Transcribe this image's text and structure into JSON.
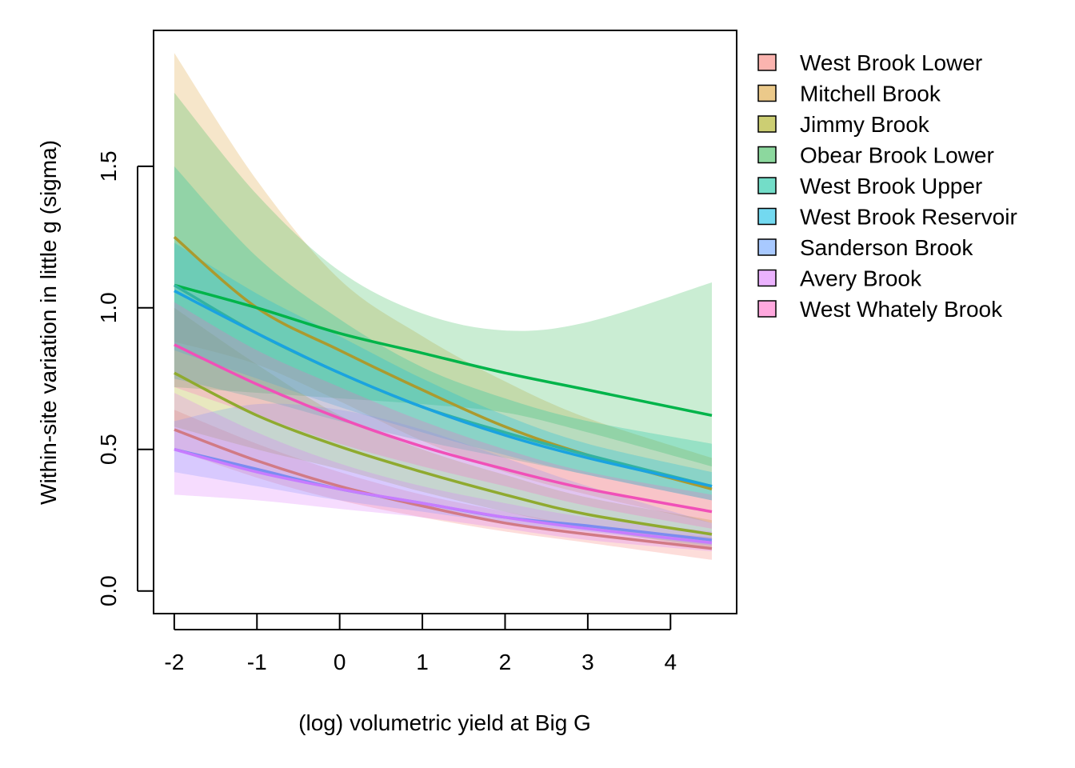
{
  "chart_data": {
    "type": "line",
    "xlabel": "(log) volumetric yield at Big G",
    "ylabel": "Within-site variation in little g (sigma)",
    "xlim": [
      -2.25,
      4.8
    ],
    "ylim": [
      -0.08,
      1.98
    ],
    "x_ticks": [
      -2,
      -1,
      0,
      1,
      2,
      3,
      4
    ],
    "x_tick_labels": [
      "-2",
      "-1",
      "0",
      "1",
      "2",
      "3",
      "4"
    ],
    "y_ticks": [
      0.0,
      0.5,
      1.0,
      1.5
    ],
    "y_tick_labels": [
      "0.0",
      "0.5",
      "1.0",
      "1.5"
    ],
    "grid": false,
    "legend_position": "right",
    "x": [
      -2,
      -1,
      0,
      1,
      2,
      3,
      4.5
    ],
    "series": [
      {
        "name": "West Brook Lower",
        "line_color": "#D17A85",
        "fill_color": "#F8766D",
        "values": [
          0.57,
          0.46,
          0.37,
          0.3,
          0.24,
          0.2,
          0.15
        ],
        "lower": [
          0.5,
          0.4,
          0.32,
          0.26,
          0.21,
          0.17,
          0.11
        ],
        "upper": [
          0.64,
          0.52,
          0.42,
          0.34,
          0.28,
          0.23,
          0.19
        ]
      },
      {
        "name": "Mitchell Brook",
        "line_color": "#AB9A2E",
        "fill_color": "#DB9D2A",
        "values": [
          1.25,
          1.0,
          0.85,
          0.71,
          0.58,
          0.48,
          0.36
        ],
        "lower": [
          0.88,
          0.8,
          0.67,
          0.53,
          0.42,
          0.34,
          0.24
        ],
        "upper": [
          1.9,
          1.45,
          1.1,
          0.9,
          0.74,
          0.61,
          0.47
        ]
      },
      {
        "name": "Jimmy Brook",
        "line_color": "#8FAA2F",
        "fill_color": "#A3A500",
        "values": [
          0.77,
          0.62,
          0.51,
          0.42,
          0.34,
          0.27,
          0.2
        ],
        "lower": [
          0.58,
          0.5,
          0.43,
          0.35,
          0.28,
          0.22,
          0.15
        ],
        "upper": [
          1.0,
          0.8,
          0.62,
          0.5,
          0.41,
          0.33,
          0.25
        ]
      },
      {
        "name": "Obear Brook Lower",
        "line_color": "#00B44A",
        "fill_color": "#2DB84F",
        "values": [
          1.08,
          1.0,
          0.91,
          0.84,
          0.77,
          0.71,
          0.62
        ],
        "lower": [
          0.72,
          0.7,
          0.68,
          0.66,
          0.63,
          0.56,
          0.44
        ],
        "upper": [
          1.76,
          1.4,
          1.13,
          0.98,
          0.92,
          0.95,
          1.09
        ]
      },
      {
        "name": "West Brook Upper",
        "line_color": "#33B3A0",
        "fill_color": "#00C19A",
        "values": [
          1.08,
          0.91,
          0.77,
          0.65,
          0.56,
          0.48,
          0.37
        ],
        "lower": [
          0.75,
          0.68,
          0.6,
          0.53,
          0.47,
          0.41,
          0.32
        ],
        "upper": [
          1.5,
          1.18,
          0.96,
          0.79,
          0.68,
          0.6,
          0.52
        ]
      },
      {
        "name": "West Brook Reservoir",
        "line_color": "#1AA3E0",
        "fill_color": "#00B9E3",
        "values": [
          1.06,
          0.91,
          0.77,
          0.65,
          0.55,
          0.47,
          0.37
        ],
        "lower": [
          0.85,
          0.75,
          0.65,
          0.56,
          0.48,
          0.41,
          0.32
        ],
        "upper": [
          1.23,
          1.05,
          0.9,
          0.75,
          0.62,
          0.52,
          0.42
        ]
      },
      {
        "name": "Sanderson Brook",
        "line_color": "#7B8CF0",
        "fill_color": "#619CFF",
        "values": [
          0.5,
          0.43,
          0.36,
          0.31,
          0.26,
          0.23,
          0.18
        ],
        "lower": [
          0.42,
          0.37,
          0.32,
          0.28,
          0.24,
          0.21,
          0.16
        ],
        "upper": [
          0.6,
          0.66,
          0.64,
          0.57,
          0.47,
          0.37,
          0.24
        ]
      },
      {
        "name": "Avery Brook",
        "line_color": "#C77CFF",
        "fill_color": "#DB72FB",
        "values": [
          0.5,
          0.42,
          0.36,
          0.31,
          0.26,
          0.22,
          0.17
        ],
        "lower": [
          0.34,
          0.32,
          0.29,
          0.26,
          0.22,
          0.18,
          0.14
        ],
        "upper": [
          0.7,
          0.56,
          0.45,
          0.37,
          0.31,
          0.26,
          0.21
        ]
      },
      {
        "name": "West Whately Brook",
        "line_color": "#F050B8",
        "fill_color": "#FF61C3",
        "values": [
          0.87,
          0.73,
          0.61,
          0.51,
          0.43,
          0.36,
          0.28
        ],
        "lower": [
          0.72,
          0.62,
          0.52,
          0.44,
          0.37,
          0.3,
          0.22
        ],
        "upper": [
          1.02,
          0.85,
          0.72,
          0.6,
          0.5,
          0.42,
          0.34
        ]
      }
    ]
  }
}
